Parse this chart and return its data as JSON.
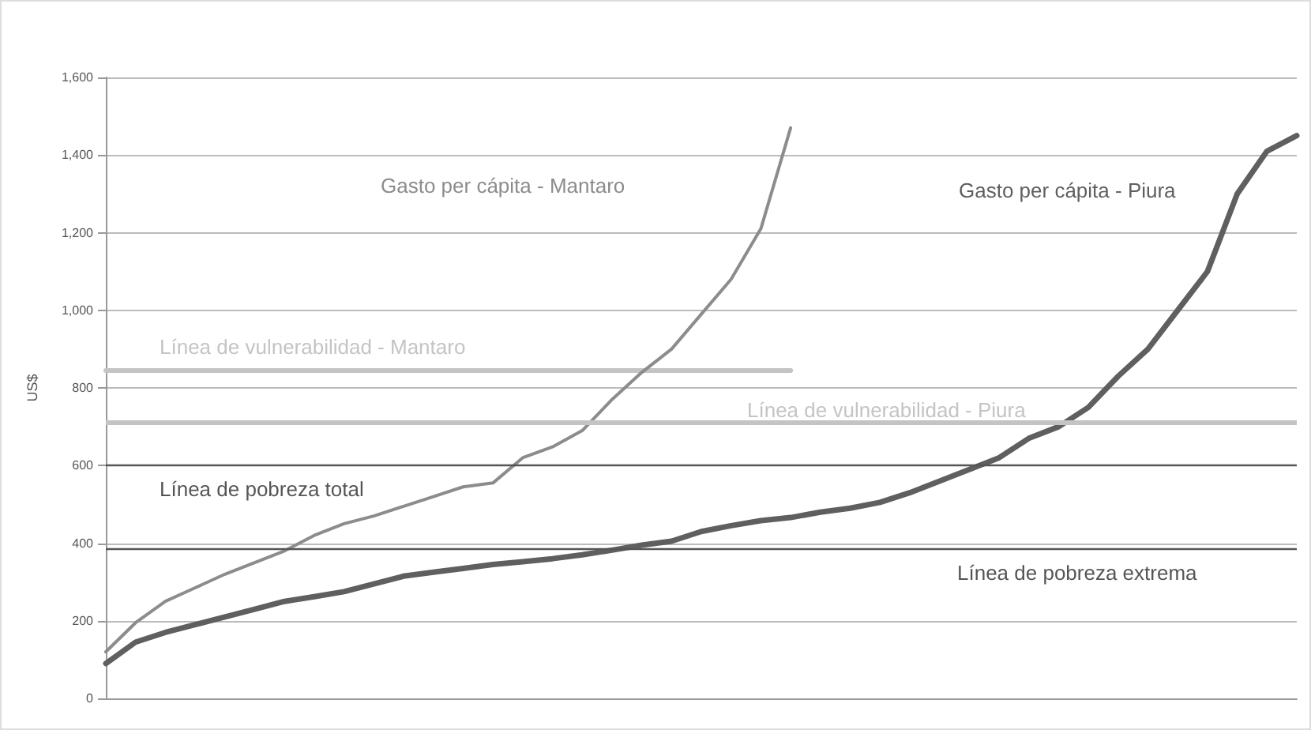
{
  "chart_data": {
    "type": "line",
    "ylabel": "US$",
    "categories": [
      null,
      null,
      null,
      null,
      null,
      null,
      null,
      null,
      null,
      null,
      null,
      null,
      null,
      null,
      null,
      null,
      null,
      null,
      null,
      null,
      null,
      null,
      null,
      null,
      null,
      null,
      null,
      null,
      null,
      null,
      null,
      null,
      null,
      null,
      null,
      null,
      null,
      null,
      null,
      null,
      null
    ],
    "series": [
      {
        "name": "Gasto per cápita - Mantaro",
        "color": "#8c8c8c",
        "values": [
          120,
          195,
          250,
          285,
          320,
          350,
          380,
          420,
          450,
          470,
          495,
          520,
          545,
          555,
          620,
          648,
          690,
          770,
          840,
          900,
          990,
          1080,
          1210,
          1470,
          null,
          null,
          null,
          null,
          null,
          null,
          null,
          null,
          null,
          null,
          null,
          null,
          null,
          null,
          null,
          null,
          null
        ]
      },
      {
        "name": "Gasto per cápita - Piura",
        "color": "#5f5f5f",
        "values": [
          90,
          145,
          170,
          190,
          210,
          230,
          250,
          262,
          275,
          295,
          315,
          325,
          335,
          345,
          352,
          360,
          370,
          382,
          395,
          405,
          430,
          445,
          458,
          466,
          480,
          490,
          505,
          530,
          560,
          590,
          620,
          670,
          700,
          750,
          830,
          900,
          1000,
          1100,
          1300,
          1410,
          1450
        ]
      },
      {
        "name": "Línea de vulnerabilidad - Mantaro",
        "color": "#c4c4c4",
        "values": [
          845,
          845,
          845,
          845,
          845,
          845,
          845,
          845,
          845,
          845,
          845,
          845,
          845,
          845,
          845,
          845,
          845,
          845,
          845,
          845,
          845,
          845,
          845,
          845,
          null,
          null,
          null,
          null,
          null,
          null,
          null,
          null,
          null,
          null,
          null,
          null,
          null,
          null,
          null,
          null,
          null
        ]
      }
    ],
    "ref_lines": [
      {
        "axis": "y",
        "value": 710,
        "label": "Línea de vulnerabilidad - Piura",
        "color": "#c4c4c4"
      },
      {
        "axis": "y",
        "value": 600,
        "label": "Línea de pobreza total",
        "color": "#555555"
      },
      {
        "axis": "y",
        "value": 385,
        "label": "Línea de pobreza extrema",
        "color": "#555555"
      }
    ],
    "ylim": [
      0,
      1600
    ],
    "yticks": [
      0,
      200,
      400,
      600,
      800,
      {
        "value": 1000,
        "label": "1,000"
      },
      {
        "value": 1200,
        "label": "1,200"
      },
      {
        "value": 1400,
        "label": "1,400"
      },
      {
        "value": 1600,
        "label": "1,600"
      }
    ],
    "grid": "y",
    "legend": false,
    "marker": "none",
    "line_style": "solid"
  }
}
